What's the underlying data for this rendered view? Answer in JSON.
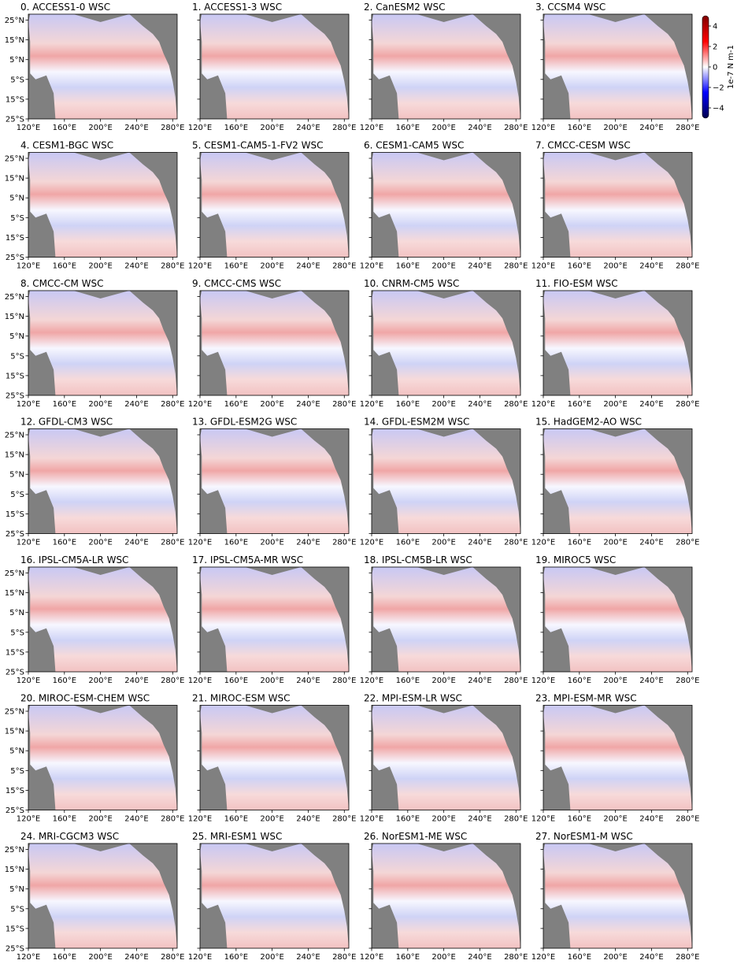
{
  "chart_data": {
    "type": "heatmap",
    "variable": "WSC",
    "x_ticks": [
      "120°E",
      "160°E",
      "200°E",
      "240°E",
      "280°E"
    ],
    "y_ticks": [
      "25°N",
      "15°N",
      "5°N",
      "5°S",
      "15°S",
      "25°S"
    ],
    "xlim": [
      120,
      285
    ],
    "ylim": [
      -25,
      28
    ],
    "colorbar": {
      "label": "1e-7 N m-1",
      "ticks": [
        "4",
        "2",
        "0",
        "−2",
        "−4"
      ],
      "range": [
        -5,
        5
      ],
      "colormap": "seismic",
      "colors": {
        "negative": "#00008b",
        "zero": "#ffffff",
        "positive": "#8b0000",
        "land": "#808080"
      }
    },
    "panels": [
      {
        "title": "0. ACCESS1-0 WSC"
      },
      {
        "title": "1. ACCESS1-3 WSC"
      },
      {
        "title": "2. CanESM2 WSC"
      },
      {
        "title": "3. CCSM4 WSC"
      },
      {
        "title": "4. CESM1-BGC WSC"
      },
      {
        "title": "5. CESM1-CAM5-1-FV2 WSC"
      },
      {
        "title": "6. CESM1-CAM5 WSC"
      },
      {
        "title": "7. CMCC-CESM WSC"
      },
      {
        "title": "8. CMCC-CM WSC"
      },
      {
        "title": "9. CMCC-CMS WSC"
      },
      {
        "title": "10. CNRM-CM5 WSC"
      },
      {
        "title": "11. FIO-ESM WSC"
      },
      {
        "title": "12. GFDL-CM3 WSC"
      },
      {
        "title": "13. GFDL-ESM2G WSC"
      },
      {
        "title": "14. GFDL-ESM2M WSC"
      },
      {
        "title": "15. HadGEM2-AO WSC"
      },
      {
        "title": "16. IPSL-CM5A-LR WSC"
      },
      {
        "title": "17. IPSL-CM5A-MR WSC"
      },
      {
        "title": "18. IPSL-CM5B-LR WSC"
      },
      {
        "title": "19. MIROC5 WSC"
      },
      {
        "title": "20. MIROC-ESM-CHEM WSC"
      },
      {
        "title": "21. MIROC-ESM WSC"
      },
      {
        "title": "22. MPI-ESM-LR WSC"
      },
      {
        "title": "23. MPI-ESM-MR WSC"
      },
      {
        "title": "24. MRI-CGCM3 WSC"
      },
      {
        "title": "25. MRI-ESM1 WSC"
      },
      {
        "title": "26. NorESM1-ME WSC"
      },
      {
        "title": "27. NorESM1-M WSC"
      }
    ]
  }
}
